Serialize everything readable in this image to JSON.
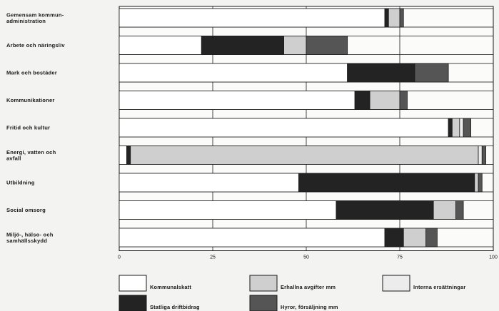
{
  "chart_data": {
    "type": "bar",
    "orientation": "horizontal",
    "stacked": true,
    "categories": [
      [
        "Gemensam kommun-",
        "administration"
      ],
      [
        "Arbete och näringsliv"
      ],
      [
        "Mark och bostäder"
      ],
      [
        "Kommunikationer"
      ],
      [
        "Fritid och kultur"
      ],
      [
        "Energi, vatten och",
        "avfall"
      ],
      [
        "Utbildning"
      ],
      [
        "Social omsorg"
      ],
      [
        "Miljö-, hälso- och",
        "samhällsskydd"
      ]
    ],
    "series": [
      {
        "name": "Kommunalskatt",
        "color": "#ffffff",
        "values": [
          71,
          22,
          61,
          63,
          88,
          2,
          48,
          58,
          71
        ]
      },
      {
        "name": "Statliga driftbidrag",
        "color": "#232323",
        "values": [
          1,
          22,
          18,
          4,
          1,
          1,
          47,
          26,
          5
        ]
      },
      {
        "name": "Erhallna avgifter mm",
        "color": "#cfcfcf",
        "values": [
          3,
          6,
          0,
          8,
          2,
          93,
          1,
          6,
          6
        ]
      },
      {
        "name": "Interna ersättningar",
        "color": "#ececec",
        "values": [
          0,
          0,
          0,
          0,
          1,
          1,
          0,
          0,
          0
        ]
      },
      {
        "name": "Hyror, försäljning mm",
        "color": "#555555",
        "values": [
          1,
          11,
          9,
          2,
          2,
          1,
          1,
          2,
          3
        ]
      }
    ],
    "xlim": [
      0,
      100
    ],
    "xticks": [
      "0",
      "25",
      "50",
      "75",
      "100"
    ],
    "grid": true,
    "legend_position": "bottom"
  }
}
